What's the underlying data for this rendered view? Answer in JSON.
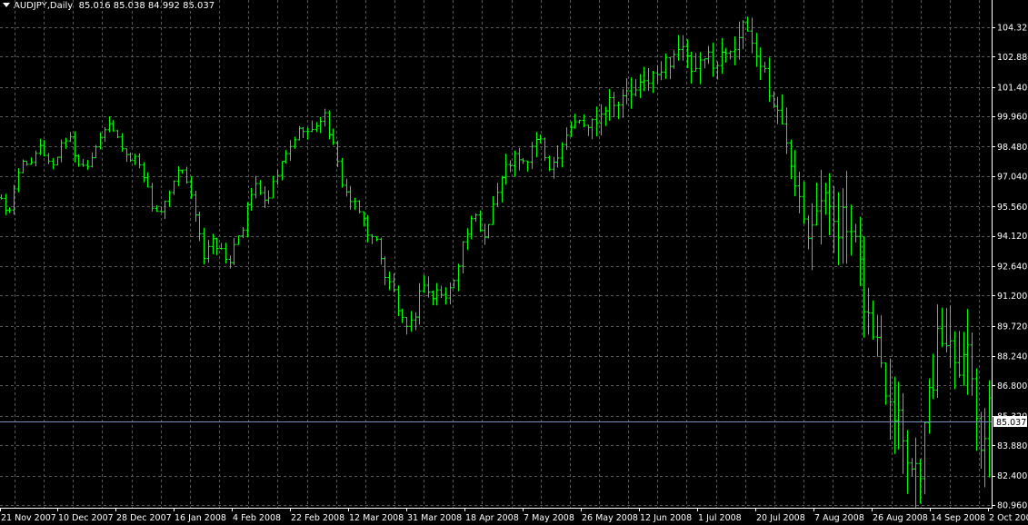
{
  "header": {
    "symbol": "AUDJPY,Daily",
    "ohlc": "85.016 85.038 84.992 85.037"
  },
  "chart_data": {
    "type": "bar",
    "title": "AUDJPY,Daily",
    "subtitle": "85.016 85.038 84.992 85.037",
    "ylim": [
      80.96,
      105.0
    ],
    "y_ticks": [
      "104.320",
      "102.880",
      "101.400",
      "99.960",
      "98.480",
      "97.040",
      "95.560",
      "94.120",
      "92.640",
      "91.200",
      "89.720",
      "88.240",
      "86.800",
      "85.320",
      "83.880",
      "82.400",
      "80.960"
    ],
    "x_ticks": [
      "21 Nov 2007",
      "10 Dec 2007",
      "28 Dec 2007",
      "16 Jan 2008",
      "4 Feb 2008",
      "22 Feb 2008",
      "12 Mar 2008",
      "31 Mar 2008",
      "18 Apr 2008",
      "7 May 2008",
      "26 May 2008",
      "12 Jun 2008",
      "1 Jul 2008",
      "20 Jul 2008",
      "7 Aug 2008",
      "26 Aug 2008",
      "14 Sep 2008",
      "2 Oct 2008"
    ],
    "grid": true,
    "current_price": "85.037",
    "bar_color": "#00ff00",
    "grid_color": "#5a5a5a",
    "current_line_color": "#7b8cc0",
    "close_series": [
      96.0,
      95.0,
      96.8,
      98.0,
      97.5,
      98.5,
      98.0,
      97.5,
      98.7,
      99.0,
      97.8,
      97.5,
      98.0,
      99.0,
      99.5,
      99.2,
      98.5,
      97.8,
      98.0,
      97.0,
      95.6,
      95.2,
      95.8,
      96.8,
      97.5,
      96.5,
      94.5,
      93.0,
      94.0,
      93.5,
      92.5,
      94.0,
      94.5,
      96.0,
      96.8,
      95.5,
      96.5,
      97.5,
      98.2,
      99.0,
      99.5,
      99.0,
      99.8,
      100.0,
      98.5,
      97.0,
      96.0,
      95.5,
      95.0,
      94.0,
      93.8,
      92.0,
      91.5,
      90.0,
      89.3,
      90.5,
      92.0,
      91.0,
      91.5,
      91.0,
      92.0,
      93.5,
      94.5,
      95.0,
      94.0,
      95.5,
      96.5,
      97.5,
      98.0,
      97.5,
      98.0,
      99.0,
      98.0,
      97.5,
      98.5,
      99.2,
      99.8,
      99.5,
      99.5,
      100.0,
      100.5,
      101.0,
      100.5,
      101.2,
      101.0,
      101.5,
      102.0,
      101.8,
      102.5,
      103.0,
      103.5,
      102.5,
      102.0,
      102.5,
      103.0,
      102.5,
      103.2,
      103.5,
      104.0,
      104.2,
      103.0,
      102.5,
      101.0,
      100.0,
      99.0,
      97.5,
      96.0,
      94.5,
      96.0,
      95.5,
      95.8,
      95.0,
      94.5,
      93.5,
      92.0,
      90.0,
      89.0,
      87.5,
      86.5,
      85.5,
      84.0,
      82.5,
      83.5,
      86.0,
      88.5,
      89.5,
      89.0,
      88.5,
      88.8,
      87.0,
      84.0,
      85.037
    ]
  }
}
